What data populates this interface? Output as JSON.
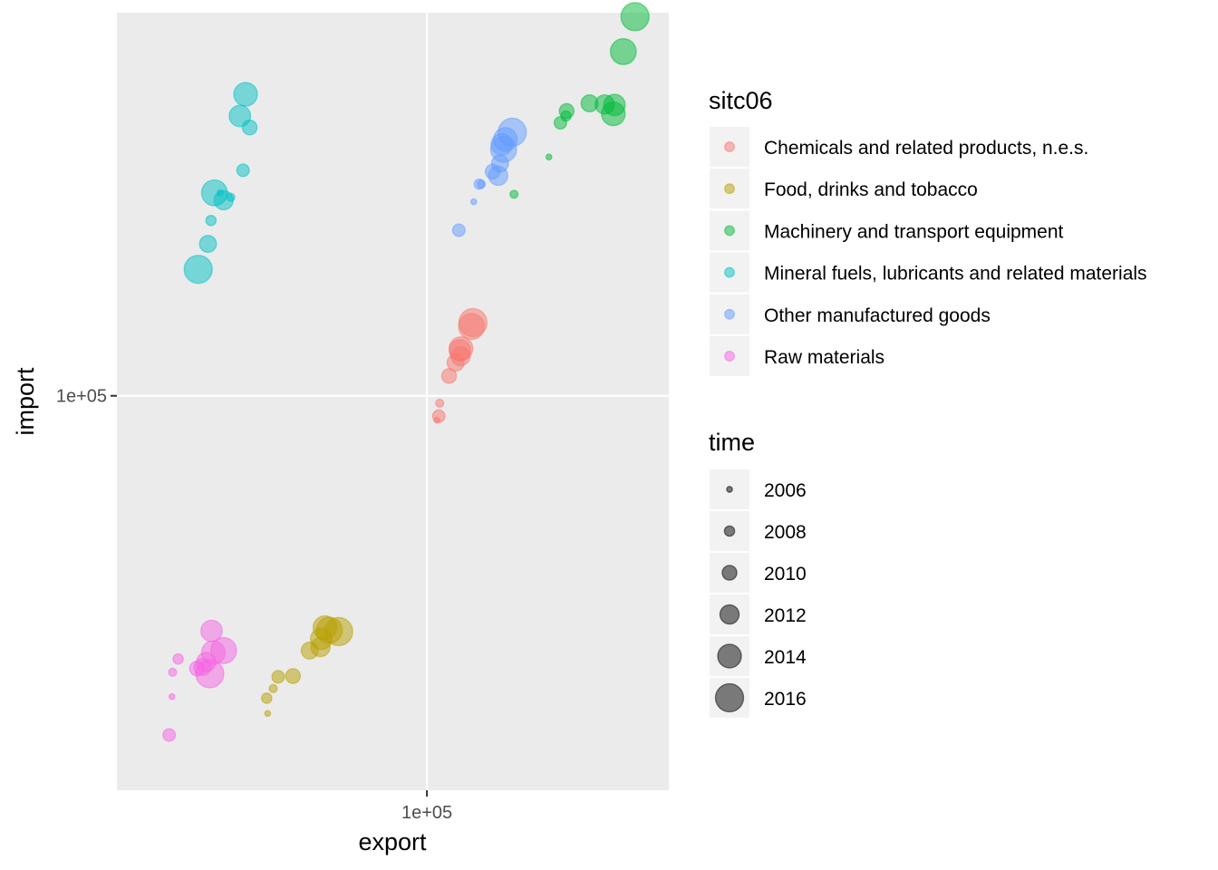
{
  "chart_data": {
    "type": "scatter",
    "x_scale": "log",
    "y_scale": "log",
    "xlabel": "export",
    "ylabel": "import",
    "x_tick_labels": [
      "1e+05"
    ],
    "y_tick_labels": [
      "1e+05"
    ],
    "x_ticks": [
      100000
    ],
    "y_ticks": [
      100000
    ],
    "xlim": [
      28000,
      270000
    ],
    "ylim": [
      26000,
      370000
    ],
    "grid": true,
    "legend_placement": "right",
    "color_legend": {
      "title": "sitc06",
      "entries": [
        {
          "label": "Chemicals and related products, n.e.s.",
          "color": "#F8766D"
        },
        {
          "label": "Food, drinks and tobacco",
          "color": "#B79F00"
        },
        {
          "label": "Machinery and transport equipment",
          "color": "#00BA38"
        },
        {
          "label": "Mineral fuels, lubricants and related materials",
          "color": "#00BFC4"
        },
        {
          "label": "Other manufactured goods",
          "color": "#619CFF"
        },
        {
          "label": "Raw materials",
          "color": "#F564E3"
        }
      ]
    },
    "size_legend": {
      "title": "time",
      "entries": [
        "2006",
        "2008",
        "2010",
        "2012",
        "2014",
        "2016"
      ],
      "years": [
        2006,
        2008,
        2010,
        2012,
        2014,
        2016
      ]
    },
    "series": [
      {
        "name": "Chemicals and related products, n.e.s.",
        "color": "#F8766D",
        "points": [
          {
            "time": 2006,
            "export": 104200,
            "import": 92000
          },
          {
            "time": 2007,
            "export": 105400,
            "import": 97500
          },
          {
            "time": 2009,
            "export": 105000,
            "import": 93300
          },
          {
            "time": 2010,
            "export": 109500,
            "import": 107000
          },
          {
            "time": 2011,
            "export": 112500,
            "import": 112000
          },
          {
            "time": 2012,
            "export": 114800,
            "import": 114500
          },
          {
            "time": 2013,
            "export": 114500,
            "import": 116800
          },
          {
            "time": 2014,
            "export": 115000,
            "import": 117500
          },
          {
            "time": 2015,
            "export": 120100,
            "import": 126700
          },
          {
            "time": 2016,
            "export": 120800,
            "import": 128400
          }
        ]
      },
      {
        "name": "Food, drinks and tobacco",
        "color": "#B79F00",
        "points": [
          {
            "time": 2006,
            "export": 52000,
            "import": 33800
          },
          {
            "time": 2007,
            "export": 53200,
            "import": 36800
          },
          {
            "time": 2008,
            "export": 51800,
            "import": 35600
          },
          {
            "time": 2009,
            "export": 54300,
            "import": 38300
          },
          {
            "time": 2010,
            "export": 57700,
            "import": 38400
          },
          {
            "time": 2011,
            "export": 61800,
            "import": 41900
          },
          {
            "time": 2012,
            "export": 64600,
            "import": 42400
          },
          {
            "time": 2013,
            "export": 64800,
            "import": 43600
          },
          {
            "time": 2014,
            "export": 65800,
            "import": 45300
          },
          {
            "time": 2015,
            "export": 67000,
            "import": 44900
          },
          {
            "time": 2016,
            "export": 69600,
            "import": 44700
          }
        ]
      },
      {
        "name": "Machinery and transport equipment",
        "color": "#00BA38",
        "points": [
          {
            "time": 2006,
            "export": 165000,
            "import": 226000
          },
          {
            "time": 2007,
            "export": 143000,
            "import": 199000
          },
          {
            "time": 2008,
            "export": 177000,
            "import": 260000
          },
          {
            "time": 2009,
            "export": 173000,
            "import": 254000
          },
          {
            "time": 2010,
            "export": 177500,
            "import": 264500
          },
          {
            "time": 2011,
            "export": 195000,
            "import": 271500
          },
          {
            "time": 2012,
            "export": 207500,
            "import": 270500
          },
          {
            "time": 2013,
            "export": 216000,
            "import": 270000
          },
          {
            "time": 2014,
            "export": 215000,
            "import": 262000
          },
          {
            "time": 2015,
            "export": 224000,
            "import": 324000
          },
          {
            "time": 2016,
            "export": 235000,
            "import": 365000
          }
        ]
      },
      {
        "name": "Mineral fuels, lubricants and related materials",
        "color": "#00BFC4",
        "points": [
          {
            "time": 2006,
            "export": 42800,
            "import": 200000
          },
          {
            "time": 2007,
            "export": 44700,
            "import": 197000
          },
          {
            "time": 2008,
            "export": 41200,
            "import": 182000
          },
          {
            "time": 2009,
            "export": 47000,
            "import": 216000
          },
          {
            "time": 2010,
            "export": 48300,
            "import": 250000
          },
          {
            "time": 2011,
            "export": 40700,
            "import": 168000
          },
          {
            "time": 2012,
            "export": 43400,
            "import": 195000
          },
          {
            "time": 2013,
            "export": 46400,
            "import": 260000
          },
          {
            "time": 2014,
            "export": 47500,
            "import": 280000
          },
          {
            "time": 2015,
            "export": 41800,
            "import": 200000
          },
          {
            "time": 2016,
            "export": 39100,
            "import": 154000
          }
        ]
      },
      {
        "name": "Other manufactured goods",
        "color": "#619CFF",
        "points": [
          {
            "time": 2006,
            "export": 121200,
            "import": 194000
          },
          {
            "time": 2007,
            "export": 125000,
            "import": 206000
          },
          {
            "time": 2008,
            "export": 124000,
            "import": 206000
          },
          {
            "time": 2009,
            "export": 114000,
            "import": 176000
          },
          {
            "time": 2010,
            "export": 131000,
            "import": 215000
          },
          {
            "time": 2011,
            "export": 135000,
            "import": 221000
          },
          {
            "time": 2012,
            "export": 134000,
            "import": 212000
          },
          {
            "time": 2013,
            "export": 136000,
            "import": 236000
          },
          {
            "time": 2014,
            "export": 138000,
            "import": 240000
          },
          {
            "time": 2015,
            "export": 137000,
            "import": 232000
          },
          {
            "time": 2016,
            "export": 142000,
            "import": 246000
          }
        ]
      },
      {
        "name": "Raw materials",
        "color": "#F564E3",
        "points": [
          {
            "time": 2006,
            "export": 35100,
            "import": 35800
          },
          {
            "time": 2007,
            "export": 35200,
            "import": 38900
          },
          {
            "time": 2008,
            "export": 36000,
            "import": 40700
          },
          {
            "time": 2009,
            "export": 34700,
            "import": 31400
          },
          {
            "time": 2010,
            "export": 38900,
            "import": 39400
          },
          {
            "time": 2011,
            "export": 39800,
            "import": 39600
          },
          {
            "time": 2012,
            "export": 40400,
            "import": 40300
          },
          {
            "time": 2013,
            "export": 41300,
            "import": 44800
          },
          {
            "time": 2014,
            "export": 41600,
            "import": 41600
          },
          {
            "time": 2015,
            "export": 43400,
            "import": 41900
          },
          {
            "time": 2016,
            "export": 41000,
            "import": 38700
          }
        ]
      }
    ]
  }
}
